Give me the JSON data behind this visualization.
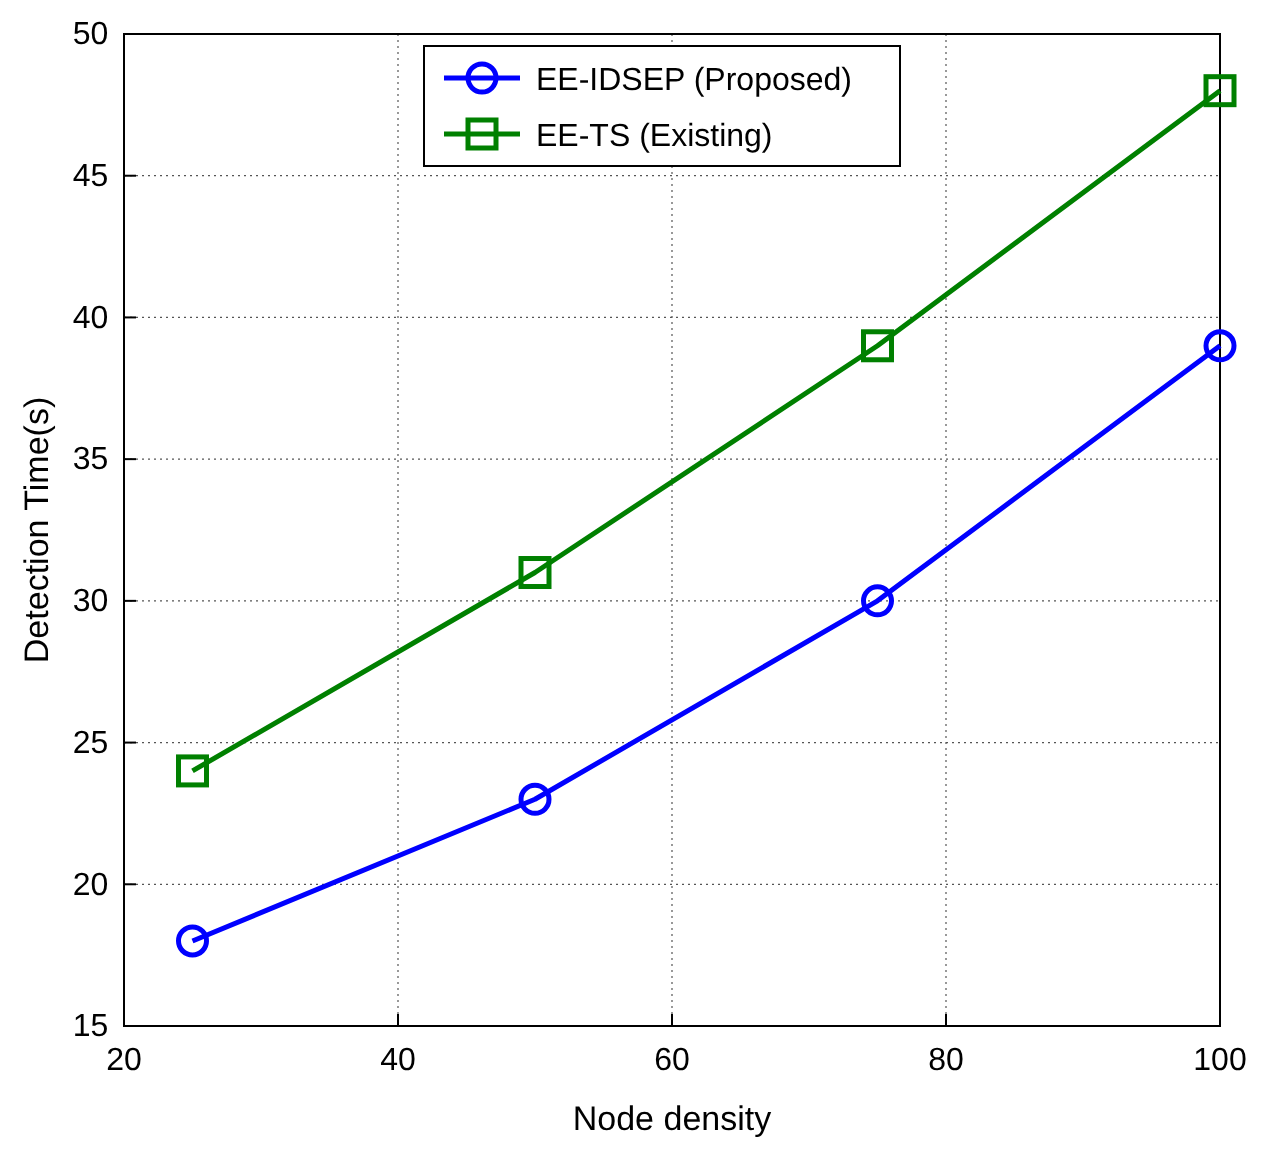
{
  "chart_data": {
    "type": "line",
    "xlabel": "Node density",
    "ylabel": "Detection Time(s)",
    "x": [
      25,
      50,
      75,
      100
    ],
    "series": [
      {
        "name": "EE-IDSEP (Proposed)",
        "color": "#0000ff",
        "values": [
          18,
          23,
          30,
          39
        ],
        "marker": "circle"
      },
      {
        "name": "EE-TS (Existing)",
        "color": "#008000",
        "values": [
          24,
          31,
          39,
          48
        ],
        "marker": "square"
      }
    ],
    "xlim": [
      20,
      100
    ],
    "xticks": [
      20,
      40,
      60,
      80,
      100
    ],
    "ylim": [
      15,
      50
    ],
    "yticks": [
      15,
      20,
      25,
      30,
      35,
      40,
      45,
      50
    ],
    "grid": true,
    "legend": "top right",
    "line_style": "solid"
  }
}
